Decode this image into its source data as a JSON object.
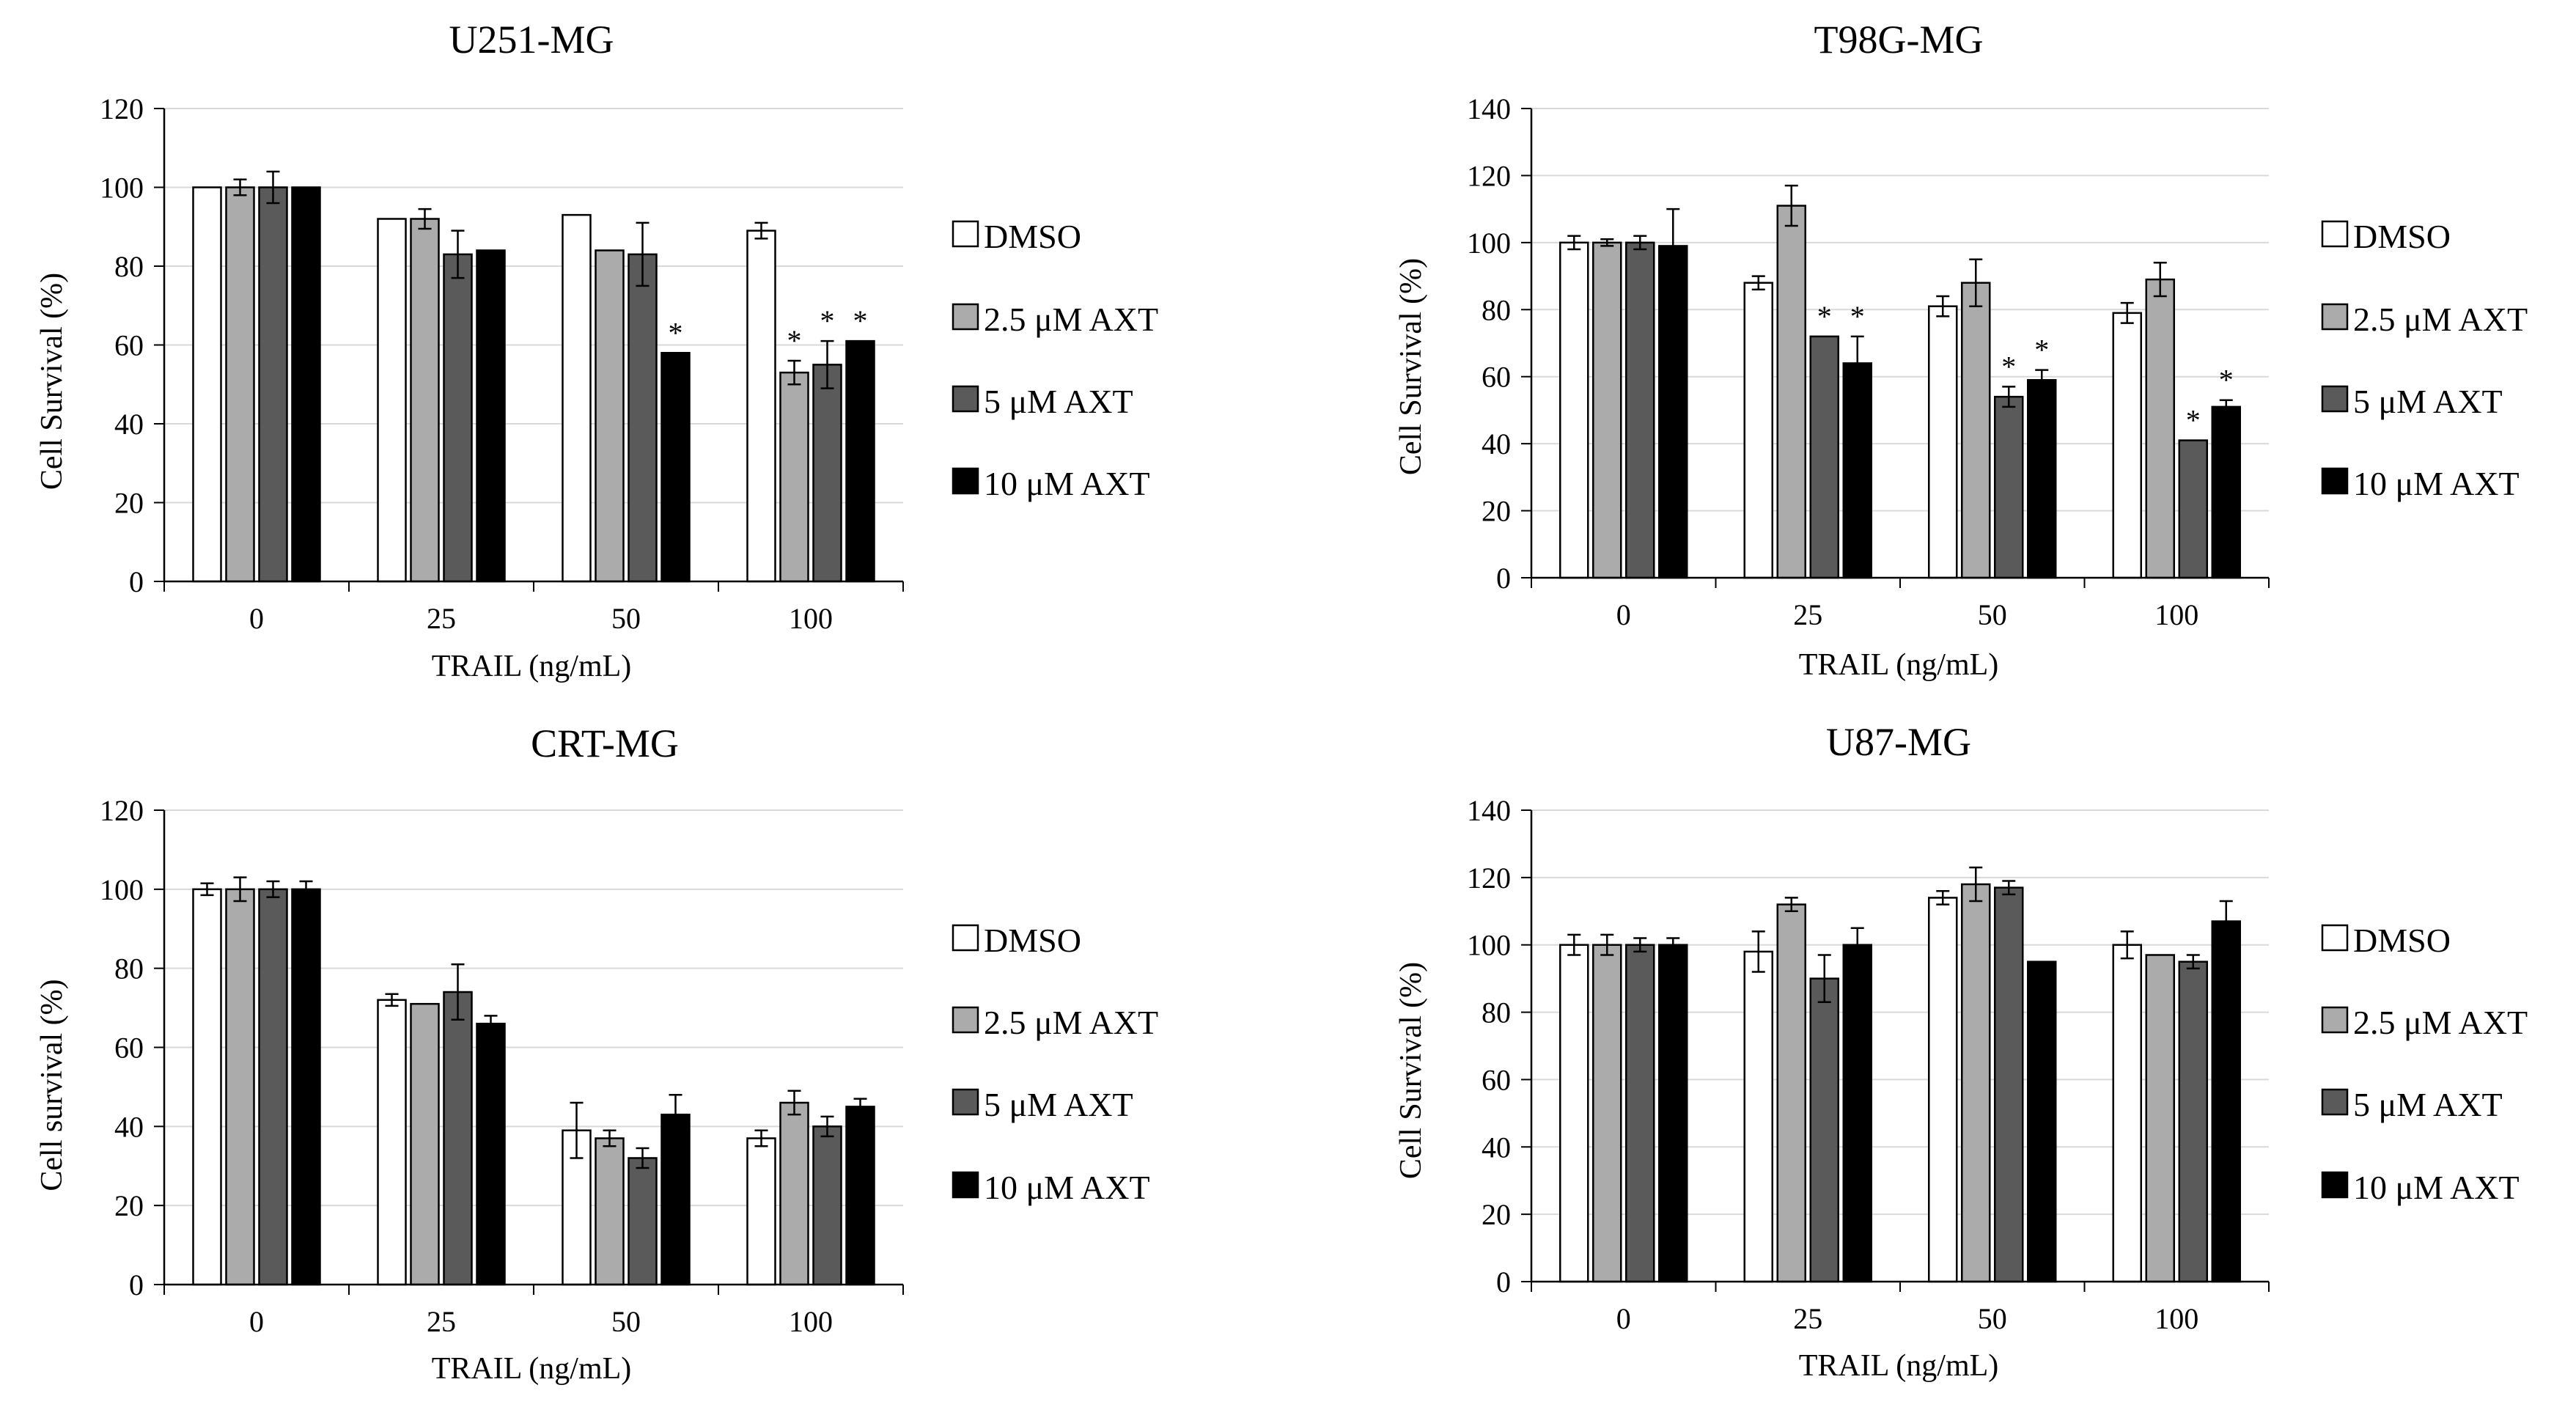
{
  "figure": {
    "fill_colors": {
      "DMSO": "#ffffff",
      "AXT_2_5": "#ababab",
      "AXT_5": "#5a5a5a",
      "AXT_10": "#000000"
    }
  },
  "chart_data": [
    {
      "type": "bar",
      "title": "U251-MG",
      "xlabel": "TRAIL (ng/mL)",
      "ylabel": "Cell Survival (%)",
      "ylim": [
        0,
        120
      ],
      "yticks": [
        0,
        20,
        40,
        60,
        80,
        100,
        120
      ],
      "categories": [
        "0",
        "25",
        "50",
        "100"
      ],
      "grid": true,
      "legend": [
        "DMSO",
        "2.5 μM AXT",
        "5 μM AXT",
        "10 μM AXT"
      ],
      "series": [
        {
          "name": "DMSO",
          "values": [
            100,
            92,
            93,
            89
          ],
          "errors": [
            0,
            0,
            0,
            2
          ],
          "stars": [
            false,
            false,
            false,
            false
          ]
        },
        {
          "name": "2.5 μM AXT",
          "values": [
            100,
            92,
            84,
            53
          ],
          "errors": [
            2,
            2.5,
            0,
            3
          ],
          "stars": [
            false,
            false,
            false,
            true
          ]
        },
        {
          "name": "5 μM AXT",
          "values": [
            100,
            83,
            83,
            55
          ],
          "errors": [
            4,
            6,
            8,
            6
          ],
          "stars": [
            false,
            false,
            false,
            true
          ]
        },
        {
          "name": "10 μM AXT",
          "values": [
            100,
            84,
            58,
            61
          ],
          "errors": [
            0,
            0,
            0,
            0
          ],
          "stars": [
            false,
            false,
            true,
            true
          ]
        }
      ]
    },
    {
      "type": "bar",
      "title": "T98G-MG",
      "xlabel": "TRAIL (ng/mL)",
      "ylabel": "Cell Survival (%)",
      "ylim": [
        0,
        140
      ],
      "yticks": [
        0,
        20,
        40,
        60,
        80,
        100,
        120,
        140
      ],
      "categories": [
        "0",
        "25",
        "50",
        "100"
      ],
      "grid": true,
      "legend": [
        "DMSO",
        "2.5 μM AXT",
        "5 μM AXT",
        "10 μM AXT"
      ],
      "series": [
        {
          "name": "DMSO",
          "values": [
            100,
            88,
            81,
            79
          ],
          "errors": [
            2,
            2,
            3,
            3
          ],
          "stars": [
            false,
            false,
            false,
            false
          ]
        },
        {
          "name": "2.5 μM AXT",
          "values": [
            100,
            111,
            88,
            89
          ],
          "errors": [
            1,
            6,
            7,
            5
          ],
          "stars": [
            false,
            false,
            false,
            false
          ]
        },
        {
          "name": "5 μM AXT",
          "values": [
            100,
            72,
            54,
            41
          ],
          "errors": [
            2,
            0,
            3,
            0
          ],
          "stars": [
            false,
            true,
            true,
            true
          ]
        },
        {
          "name": "10 μM AXT",
          "values": [
            99,
            64,
            59,
            51
          ],
          "errors": [
            11,
            8,
            3,
            2
          ],
          "stars": [
            false,
            true,
            true,
            true
          ]
        }
      ]
    },
    {
      "type": "bar",
      "title": "CRT-MG",
      "xlabel": "TRAIL (ng/mL)",
      "ylabel": "Cell survival (%)",
      "ylim": [
        0,
        120
      ],
      "yticks": [
        0,
        20,
        40,
        60,
        80,
        100,
        120
      ],
      "categories": [
        "0",
        "25",
        "50",
        "100"
      ],
      "grid": true,
      "legend": [
        "DMSO",
        "2.5 μM AXT",
        "5 μM AXT",
        "10 μM AXT"
      ],
      "series": [
        {
          "name": "DMSO",
          "values": [
            100,
            72,
            39,
            37
          ],
          "errors": [
            1.5,
            1.5,
            7,
            2
          ],
          "stars": [
            false,
            false,
            false,
            false
          ]
        },
        {
          "name": "2.5 μM AXT",
          "values": [
            100,
            71,
            37,
            46
          ],
          "errors": [
            3,
            0,
            2,
            3
          ],
          "stars": [
            false,
            false,
            false,
            false
          ]
        },
        {
          "name": "5 μM AXT",
          "values": [
            100,
            74,
            32,
            40
          ],
          "errors": [
            2,
            7,
            2.5,
            2.5
          ],
          "stars": [
            false,
            false,
            false,
            false
          ]
        },
        {
          "name": "10 μM AXT",
          "values": [
            100,
            66,
            43,
            45
          ],
          "errors": [
            2,
            2,
            5,
            2
          ],
          "stars": [
            false,
            false,
            false,
            false
          ]
        }
      ]
    },
    {
      "type": "bar",
      "title": "U87-MG",
      "xlabel": "TRAIL (ng/mL)",
      "ylabel": "Cell Survival (%)",
      "ylim": [
        0,
        140
      ],
      "yticks": [
        0,
        20,
        40,
        60,
        80,
        100,
        120,
        140
      ],
      "categories": [
        "0",
        "25",
        "50",
        "100"
      ],
      "grid": true,
      "legend": [
        "DMSO",
        "2.5 μM AXT",
        "5 μM AXT",
        "10 μM AXT"
      ],
      "series": [
        {
          "name": "DMSO",
          "values": [
            100,
            98,
            114,
            100
          ],
          "errors": [
            3,
            6,
            2,
            4
          ],
          "stars": [
            false,
            false,
            false,
            false
          ]
        },
        {
          "name": "2.5 μM AXT",
          "values": [
            100,
            112,
            118,
            97
          ],
          "errors": [
            3,
            2,
            5,
            0
          ],
          "stars": [
            false,
            false,
            false,
            false
          ]
        },
        {
          "name": "5 μM AXT",
          "values": [
            100,
            90,
            117,
            95
          ],
          "errors": [
            2,
            7,
            2,
            2
          ],
          "stars": [
            false,
            false,
            false,
            false
          ]
        },
        {
          "name": "10 μM AXT",
          "values": [
            100,
            100,
            95,
            107
          ],
          "errors": [
            2,
            5,
            0,
            6
          ],
          "stars": [
            false,
            false,
            false,
            false
          ]
        }
      ]
    }
  ]
}
